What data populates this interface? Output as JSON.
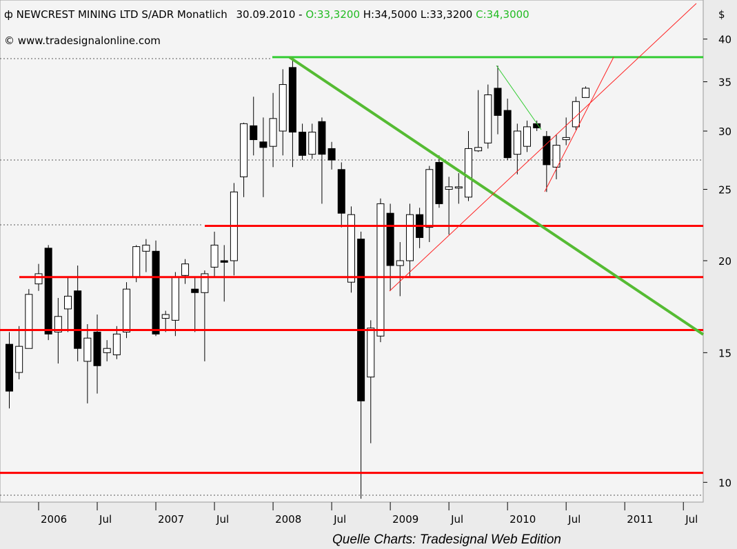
{
  "chart_data": {
    "type": "candlestick",
    "title": "NEWCREST MINING LTD S/ADR Monatlich",
    "date": "30.09.2010 -",
    "open_label": "O:33,3200",
    "high_low_label": "H:34,5000 L:33,3200",
    "close_label": "C:34,3000",
    "source": "© www.tradesignalonline.com",
    "footer": "Quelle Charts: Tradesignal Web Edition",
    "y_label": "$",
    "log_y": true,
    "grid": false,
    "up_color": "#ffffff",
    "down_color": "#000000",
    "label_green": "#22bb22",
    "x": [
      "2005-10",
      "2005-11",
      "2005-12",
      "2006-01",
      "2006-02",
      "2006-03",
      "2006-04",
      "2006-05",
      "2006-06",
      "2006-07",
      "2006-08",
      "2006-09",
      "2006-10",
      "2006-11",
      "2006-12",
      "2007-01",
      "2007-02",
      "2007-03",
      "2007-04",
      "2007-05",
      "2007-06",
      "2007-07",
      "2007-08",
      "2007-09",
      "2007-10",
      "2007-11",
      "2007-12",
      "2008-01",
      "2008-02",
      "2008-03",
      "2008-04",
      "2008-05",
      "2008-06",
      "2008-07",
      "2008-08",
      "2008-09",
      "2008-10",
      "2008-11",
      "2008-12",
      "2009-01",
      "2009-02",
      "2009-03",
      "2009-04",
      "2009-05",
      "2009-06",
      "2009-07",
      "2009-08",
      "2009-09",
      "2009-10",
      "2009-11",
      "2009-12",
      "2010-01",
      "2010-02",
      "2010-03",
      "2010-04",
      "2010-05",
      "2010-06",
      "2010-07",
      "2010-08",
      "2010-09"
    ],
    "open": [
      15.4,
      14.1,
      15.2,
      18.6,
      20.8,
      16.0,
      17.2,
      18.2,
      14.6,
      16.0,
      15.0,
      14.9,
      16.0,
      19.0,
      20.6,
      20.6,
      16.7,
      16.6,
      19.1,
      18.3,
      18.1,
      19.6,
      20.0,
      20.0,
      26.0,
      30.5,
      29.0,
      28.6,
      30.0,
      36.6,
      29.9,
      27.9,
      30.9,
      28.4,
      26.6,
      18.7,
      21.4,
      13.9,
      15.8,
      23.2,
      19.7,
      20.0,
      23.1,
      22.2,
      27.2,
      25.0,
      25.1,
      24.4,
      28.2,
      28.9,
      34.3,
      32.0,
      27.9,
      28.6,
      30.7,
      29.5,
      26.8,
      29.2,
      30.4,
      33.32
    ],
    "high": [
      16.0,
      16.3,
      18.3,
      19.8,
      21.0,
      17.8,
      19.0,
      19.7,
      16.4,
      16.9,
      15.6,
      16.3,
      18.7,
      21.0,
      21.4,
      21.3,
      17.1,
      19.3,
      20.1,
      19.0,
      19.4,
      21.9,
      21.0,
      25.5,
      30.8,
      33.4,
      31.3,
      33.8,
      36.4,
      37.6,
      30.7,
      30.7,
      31.3,
      29.0,
      27.2,
      23.7,
      21.9,
      16.6,
      24.3,
      23.9,
      21.2,
      23.9,
      23.6,
      26.9,
      27.8,
      26.0,
      26.3,
      30.0,
      34.1,
      34.7,
      36.8,
      33.2,
      30.7,
      31.0,
      31.0,
      30.0,
      29.7,
      31.3,
      33.4,
      34.5
    ],
    "low": [
      12.6,
      13.8,
      15.2,
      18.2,
      15.6,
      14.5,
      16.0,
      14.6,
      12.8,
      13.2,
      14.6,
      14.7,
      15.7,
      18.7,
      19.3,
      15.8,
      16.0,
      15.8,
      18.6,
      16.0,
      14.6,
      19.0,
      17.6,
      19.1,
      24.4,
      27.8,
      24.4,
      26.8,
      27.8,
      26.8,
      27.4,
      27.5,
      23.9,
      26.6,
      22.2,
      18.1,
      9.5,
      11.3,
      15.5,
      18.2,
      17.9,
      19.0,
      20.8,
      21.2,
      23.6,
      21.7,
      23.9,
      24.1,
      28.1,
      28.4,
      29.7,
      27.4,
      26.2,
      28.1,
      30.0,
      24.8,
      25.8,
      28.7,
      30.1,
      33.32
    ],
    "close": [
      13.3,
      15.3,
      18.0,
      19.2,
      15.9,
      16.8,
      17.9,
      15.2,
      15.7,
      14.4,
      15.2,
      15.9,
      18.3,
      20.9,
      21.0,
      15.9,
      16.9,
      19.0,
      19.8,
      18.1,
      19.2,
      21.0,
      19.9,
      24.8,
      30.7,
      29.2,
      28.5,
      31.2,
      34.7,
      29.9,
      27.8,
      29.9,
      27.9,
      27.4,
      23.2,
      23.1,
      12.9,
      16.2,
      23.9,
      19.7,
      20.0,
      23.1,
      21.5,
      26.6,
      23.9,
      25.2,
      25.2,
      28.4,
      28.5,
      33.6,
      31.5,
      27.6,
      30.0,
      30.4,
      30.3,
      27.0,
      28.7,
      29.4,
      32.9,
      34.3
    ],
    "ylim": [
      9.4,
      45.2
    ],
    "yticks": [
      10,
      15,
      20,
      25,
      30,
      35,
      40
    ],
    "xticks": [
      {
        "value": "2006-01",
        "label": "2006"
      },
      {
        "value": "2006-07",
        "label": "Jul"
      },
      {
        "value": "2007-01",
        "label": "2007"
      },
      {
        "value": "2007-07",
        "label": "Jul"
      },
      {
        "value": "2008-01",
        "label": "2008"
      },
      {
        "value": "2008-07",
        "label": "Jul"
      },
      {
        "value": "2009-01",
        "label": "2009"
      },
      {
        "value": "2009-07",
        "label": "Jul"
      },
      {
        "value": "2010-01",
        "label": "2010"
      },
      {
        "value": "2010-07",
        "label": "Jul"
      },
      {
        "value": "2011-01",
        "label": "2011"
      },
      {
        "value": "2011-07",
        "label": "Jul"
      }
    ],
    "horizontal_lines": [
      {
        "value": 22.3,
        "color": "#ff0000"
      },
      {
        "value": 19.0,
        "color": "#ff0000"
      },
      {
        "value": 16.1,
        "color": "#ff0000"
      },
      {
        "value": 10.3,
        "color": "#ff0000"
      },
      {
        "value": 37.8,
        "color": "#33cc33"
      }
    ]
  }
}
